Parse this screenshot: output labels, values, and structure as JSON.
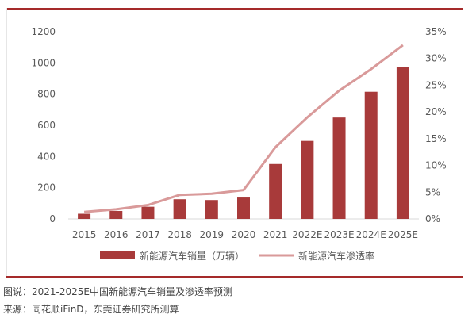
{
  "colors": {
    "bar": "#a83a3a",
    "line": "#d99a9a",
    "frame": "#a52a2a",
    "axis": "#d9d9d9",
    "text": "#595959"
  },
  "chart_data": {
    "type": "bar",
    "categories": [
      "2015",
      "2016",
      "2017",
      "2018",
      "2019",
      "2020",
      "2021",
      "2022E",
      "2023E",
      "2024E",
      "2025E"
    ],
    "series": [
      {
        "name": "新能源汽车销量（万辆）",
        "type": "bar",
        "axis": "left",
        "values": [
          33,
          51,
          78,
          126,
          121,
          137,
          352,
          500,
          650,
          815,
          975
        ]
      },
      {
        "name": "新能源汽车渗透率",
        "type": "line",
        "axis": "right",
        "values": [
          1.3,
          1.8,
          2.6,
          4.5,
          4.7,
          5.4,
          13.4,
          19.0,
          24.0,
          28.0,
          32.5
        ]
      }
    ],
    "left_axis": {
      "ylim": [
        0,
        1200
      ],
      "ticks": [
        "0",
        "200",
        "400",
        "600",
        "800",
        "1000",
        "1200"
      ]
    },
    "right_axis": {
      "ylim": [
        0,
        35
      ],
      "ticks": [
        "0%",
        "5%",
        "10%",
        "15%",
        "20%",
        "25%",
        "30%",
        "35%"
      ]
    },
    "legend_position": "bottom",
    "grid": false
  },
  "caption": {
    "line1": "图说：2021-2025E中国新能源汽车销量及渗透率预测",
    "line2": "来源：同花顺iFinD，东莞证券研究所测算"
  }
}
